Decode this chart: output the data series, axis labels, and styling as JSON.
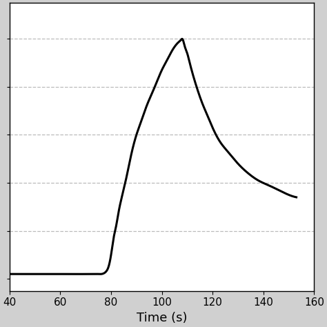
{
  "title": "",
  "xlabel": "Time (s)",
  "ylabel": "",
  "xlim": [
    40,
    160
  ],
  "xticks": [
    40,
    60,
    80,
    100,
    120,
    140,
    160
  ],
  "line_color": "#000000",
  "line_width": 2.2,
  "background_color": "#ffffff",
  "outer_background": "#d0d0d0",
  "grid_color": "#aaaaaa",
  "grid_linestyle": "--",
  "grid_alpha": 0.8,
  "xlabel_fontsize": 13,
  "tick_fontsize": 11,
  "curve_points": {
    "t": [
      40,
      50,
      60,
      70,
      75,
      78,
      79,
      80,
      81,
      82,
      83,
      84,
      86,
      88,
      90,
      92,
      94,
      96,
      98,
      100,
      102,
      104,
      106,
      107,
      107.5,
      108,
      108.5,
      109,
      110,
      111,
      112,
      114,
      116,
      118,
      120,
      123,
      126,
      130,
      134,
      138,
      142,
      146,
      150,
      153
    ],
    "T": [
      0.02,
      0.02,
      0.02,
      0.02,
      0.02,
      0.03,
      0.05,
      0.1,
      0.17,
      0.22,
      0.28,
      0.33,
      0.42,
      0.52,
      0.6,
      0.66,
      0.72,
      0.77,
      0.82,
      0.87,
      0.91,
      0.95,
      0.98,
      0.99,
      0.995,
      1.0,
      0.99,
      0.97,
      0.94,
      0.9,
      0.86,
      0.79,
      0.73,
      0.68,
      0.63,
      0.57,
      0.53,
      0.48,
      0.44,
      0.41,
      0.39,
      0.37,
      0.35,
      0.34
    ]
  }
}
